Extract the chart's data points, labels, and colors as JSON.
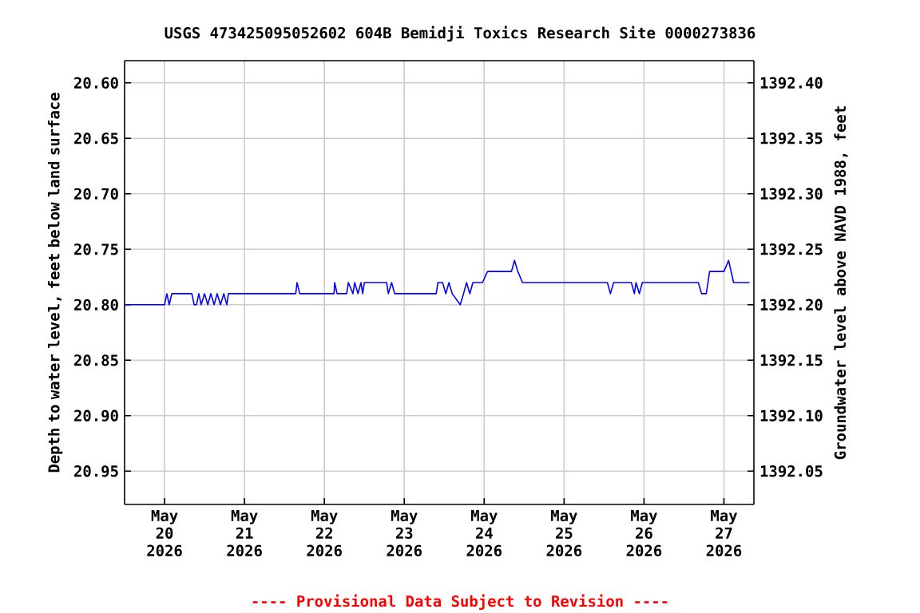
{
  "chart_data": {
    "type": "line",
    "title": "USGS 473425095052602 604B      Bemidji Toxics Research Site  0000273836",
    "ylabel": "Depth to water level, feet below land surface",
    "y2label": "Groundwater level above NAVD 1988, feet",
    "annotations": [
      "---- Provisional Data Subject to Revision ----"
    ],
    "grid": true,
    "xlim": [
      "2026-05-19T12:00",
      "2026-05-27T09:00"
    ],
    "xticks": [
      {
        "value": "2026-05-20",
        "label": "May 20 2026"
      },
      {
        "value": "2026-05-21",
        "label": "May 21 2026"
      },
      {
        "value": "2026-05-22",
        "label": "May 22 2026"
      },
      {
        "value": "2026-05-23",
        "label": "May 23 2026"
      },
      {
        "value": "2026-05-24",
        "label": "May 24 2026"
      },
      {
        "value": "2026-05-25",
        "label": "May 25 2026"
      },
      {
        "value": "2026-05-26",
        "label": "May 26 2026"
      },
      {
        "value": "2026-05-27",
        "label": "May 27 2026"
      }
    ],
    "ylim": [
      20.98,
      20.58
    ],
    "yticks": [
      {
        "value": 20.6,
        "label": "20.60"
      },
      {
        "value": 20.65,
        "label": "20.65"
      },
      {
        "value": 20.7,
        "label": "20.70"
      },
      {
        "value": 20.75,
        "label": "20.75"
      },
      {
        "value": 20.8,
        "label": "20.80"
      },
      {
        "value": 20.85,
        "label": "20.85"
      },
      {
        "value": 20.9,
        "label": "20.90"
      },
      {
        "value": 20.95,
        "label": "20.95"
      }
    ],
    "y2lim": [
      1392.02,
      1392.42
    ],
    "y2ticks": [
      {
        "value": 1392.05,
        "label": "1392.05"
      },
      {
        "value": 1392.1,
        "label": "1392.10"
      },
      {
        "value": 1392.15,
        "label": "1392.15"
      },
      {
        "value": 1392.2,
        "label": "1392.20"
      },
      {
        "value": 1392.25,
        "label": "1392.25"
      },
      {
        "value": 1392.3,
        "label": "1392.30"
      },
      {
        "value": 1392.35,
        "label": "1392.35"
      },
      {
        "value": 1392.4,
        "label": "1392.40"
      }
    ],
    "series": [
      {
        "color": "#0000ff",
        "x": [
          "2026-05-19T12:00",
          "2026-05-20T00:00",
          "2026-05-20T00:42",
          "2026-05-20T01:24",
          "2026-05-20T02:12",
          "2026-05-20T03:48",
          "2026-05-20T08:12",
          "2026-05-20T08:54",
          "2026-05-20T09:36",
          "2026-05-20T10:18",
          "2026-05-20T11:00",
          "2026-05-20T12:00",
          "2026-05-20T13:00",
          "2026-05-20T13:54",
          "2026-05-20T14:54",
          "2026-05-20T15:48",
          "2026-05-20T16:48",
          "2026-05-20T17:48",
          "2026-05-20T18:42",
          "2026-05-20T19:12",
          "2026-05-21T15:24",
          "2026-05-21T15:48",
          "2026-05-21T16:36",
          "2026-05-22T02:54",
          "2026-05-22T03:06",
          "2026-05-22T03:48",
          "2026-05-22T06:42",
          "2026-05-22T07:12",
          "2026-05-22T08:36",
          "2026-05-22T09:06",
          "2026-05-22T10:06",
          "2026-05-22T11:00",
          "2026-05-22T11:30",
          "2026-05-22T12:00",
          "2026-05-22T18:42",
          "2026-05-22T19:12",
          "2026-05-22T20:12",
          "2026-05-22T21:06",
          "2026-05-23T09:36",
          "2026-05-23T10:06",
          "2026-05-23T11:30",
          "2026-05-23T12:30",
          "2026-05-23T13:24",
          "2026-05-23T14:24",
          "2026-05-23T16:48",
          "2026-05-23T17:48",
          "2026-05-23T18:42",
          "2026-05-23T19:42",
          "2026-05-23T20:36",
          "2026-05-23T23:30",
          "2026-05-24T01:00",
          "2026-05-24T08:12",
          "2026-05-24T09:06",
          "2026-05-24T10:06",
          "2026-05-24T11:30",
          "2026-05-25T13:00",
          "2026-05-25T13:54",
          "2026-05-25T14:54",
          "2026-05-25T20:12",
          "2026-05-25T21:06",
          "2026-05-25T21:36",
          "2026-05-25T22:36",
          "2026-05-25T23:30",
          "2026-05-26T16:18",
          "2026-05-26T17:18",
          "2026-05-26T18:42",
          "2026-05-26T19:42",
          "2026-05-27T00:00",
          "2026-05-27T01:24",
          "2026-05-27T02:54",
          "2026-05-27T07:42"
        ],
        "values": [
          20.8,
          20.8,
          20.79,
          20.8,
          20.79,
          20.79,
          20.79,
          20.8,
          20.8,
          20.79,
          20.8,
          20.79,
          20.8,
          20.79,
          20.8,
          20.79,
          20.8,
          20.79,
          20.8,
          20.79,
          20.79,
          20.78,
          20.79,
          20.79,
          20.78,
          20.79,
          20.79,
          20.78,
          20.79,
          20.78,
          20.79,
          20.78,
          20.79,
          20.78,
          20.78,
          20.79,
          20.78,
          20.79,
          20.79,
          20.78,
          20.78,
          20.79,
          20.78,
          20.79,
          20.8,
          20.79,
          20.78,
          20.79,
          20.78,
          20.78,
          20.77,
          20.77,
          20.76,
          20.77,
          20.78,
          20.78,
          20.79,
          20.78,
          20.78,
          20.79,
          20.78,
          20.79,
          20.78,
          20.78,
          20.79,
          20.79,
          20.77,
          20.77,
          20.76,
          20.78,
          20.78
        ]
      }
    ]
  }
}
